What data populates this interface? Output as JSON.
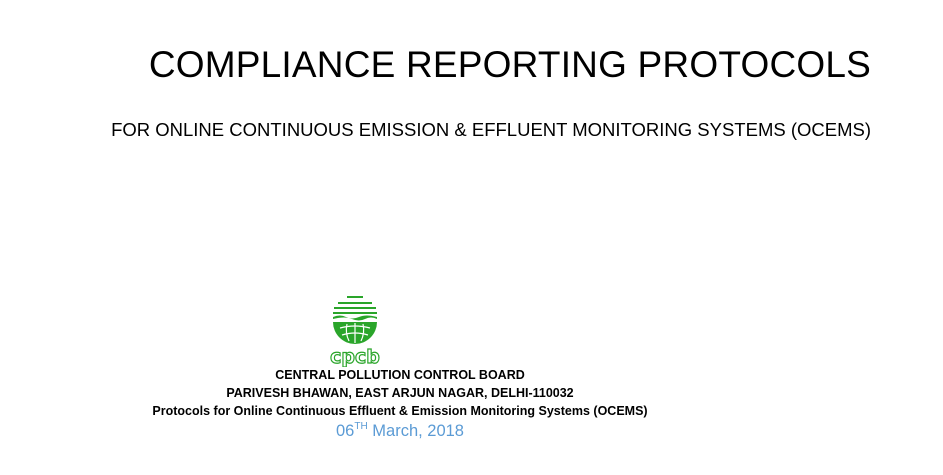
{
  "document": {
    "title": "COMPLIANCE REPORTING PROTOCOLS",
    "subtitle": "FOR ONLINE CONTINUOUS EMISSION & EFFLUENT MONITORING SYSTEMS (OCEMS)"
  },
  "logo": {
    "text": "cpcb",
    "color": "#2aa52a"
  },
  "organization": {
    "name": "CENTRAL POLLUTION CONTROL BOARD",
    "address": "PARIVESH BHAWAN, EAST ARJUN NAGAR, DELHI-110032",
    "document_name": "Protocols for Online Continuous Effluent & Emission Monitoring Systems (OCEMS)"
  },
  "date": {
    "day": "06",
    "suffix": "TH",
    "rest": " March, 2018",
    "color": "#5b9bd5"
  }
}
